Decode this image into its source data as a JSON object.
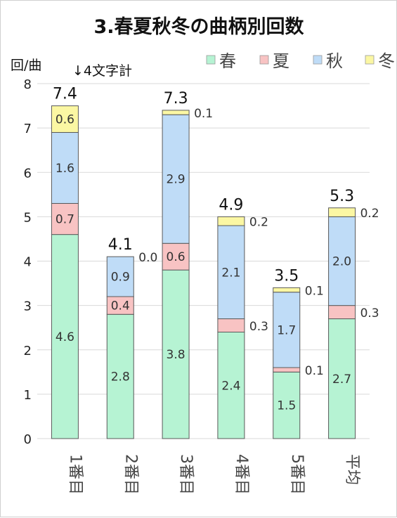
{
  "chart_data": {
    "type": "bar",
    "stacked": true,
    "title": "3.春夏秋冬の曲柄別回数",
    "ylabel": "回/曲",
    "annotation": "↓4文字計",
    "ylim": [
      0,
      8
    ],
    "yticks": [
      "0",
      "1",
      "2",
      "3",
      "4",
      "5",
      "6",
      "7",
      "8"
    ],
    "grid": true,
    "legend_position": "top-right",
    "categories": [
      "1番目",
      "2番目",
      "3番目",
      "4番目",
      "5番目",
      "平均"
    ],
    "series": [
      {
        "name": "春",
        "color": "#b6f3d3",
        "values": [
          4.6,
          2.8,
          3.8,
          2.4,
          1.5,
          2.7
        ]
      },
      {
        "name": "夏",
        "color": "#f8c3c3",
        "values": [
          0.7,
          0.4,
          0.6,
          0.3,
          0.1,
          0.3
        ]
      },
      {
        "name": "秋",
        "color": "#bfdcf7",
        "values": [
          1.6,
          0.9,
          2.9,
          2.1,
          1.7,
          2.0
        ]
      },
      {
        "name": "冬",
        "color": "#fbf7a3",
        "values": [
          0.6,
          0.0,
          0.1,
          0.2,
          0.1,
          0.2
        ]
      }
    ],
    "segment_labels": [
      [
        "4.6",
        "2.8",
        "3.8",
        "2.4",
        "1.5",
        "2.7"
      ],
      [
        "0.7",
        "0.4",
        "0.6",
        "0.3",
        "0.1",
        "0.3"
      ],
      [
        "1.6",
        "0.9",
        "2.9",
        "2.1",
        "1.7",
        "2.0"
      ],
      [
        "0.6",
        "0.0",
        "0.1",
        "0.2",
        "0.1",
        "0.2"
      ]
    ],
    "totals": [
      "7.4",
      "4.1",
      "7.3",
      "4.9",
      "3.5",
      "5.3"
    ]
  }
}
